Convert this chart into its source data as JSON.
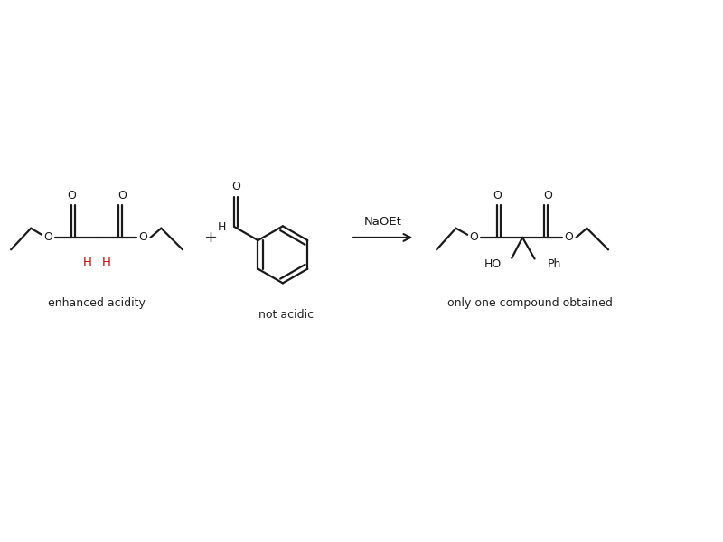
{
  "bg_color": "#ffffff",
  "line_color": "#1a1a1a",
  "red_color": "#cc0000",
  "fig_width": 8.0,
  "fig_height": 6.0,
  "dpi": 100,
  "label1": "enhanced acidity",
  "label2": "not acidic",
  "label3": "only one compound obtained",
  "reagent": "NaOEt",
  "plus_sign": "+",
  "xlim": [
    0,
    10
  ],
  "ylim": [
    0,
    7.5
  ]
}
